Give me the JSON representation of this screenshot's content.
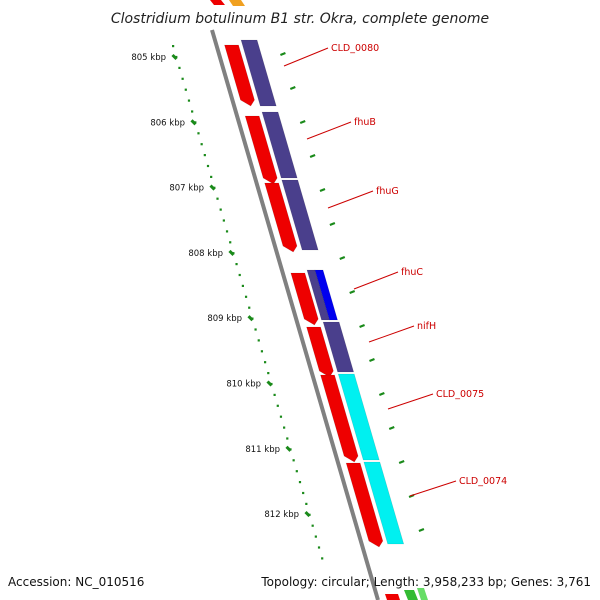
{
  "title": "Clostridium botulinum B1 str. Okra, complete genome",
  "footer": {
    "accession": "Accession: NC_010516",
    "topology": "Topology: circular; Length: 3,958,233 bp; Genes: 3,761"
  },
  "colors": {
    "backbone": "#808080",
    "cds": "#ee0000",
    "gene_track": "#4a3f8c",
    "fhuC": "#0000ee",
    "cyan_genes": "#00f0f0",
    "scale_dots": "#1a8a1a",
    "label_line": "#cc0000",
    "orange_partial": "#f0a020",
    "green_partial": "#33bb33"
  },
  "scale": {
    "unit": "kbp",
    "ticks": [
      {
        "value": 805,
        "label": "805 kbp"
      },
      {
        "value": 806,
        "label": "806 kbp"
      },
      {
        "value": 807,
        "label": "807 kbp"
      },
      {
        "value": 808,
        "label": "808 kbp"
      },
      {
        "value": 809,
        "label": "809 kbp"
      },
      {
        "value": 810,
        "label": "810 kbp"
      },
      {
        "value": 811,
        "label": "811 kbp"
      },
      {
        "value": 812,
        "label": "812 kbp"
      }
    ]
  },
  "genes": [
    {
      "name": "CLD_0080",
      "start": 805.0,
      "end": 805.9,
      "track": "purple"
    },
    {
      "name": "fhuB",
      "start": 805.9,
      "end": 806.9,
      "track": "purple"
    },
    {
      "name": "fhuG",
      "start": 806.9,
      "end": 808.0,
      "track": "purple"
    },
    {
      "name": "fhuC",
      "start": 808.3,
      "end": 809.1,
      "track": "blue"
    },
    {
      "name": "nifH",
      "start": 809.1,
      "end": 809.9,
      "track": "purple"
    },
    {
      "name": "CLD_0075",
      "start": 809.9,
      "end": 811.2,
      "track": "cyan"
    },
    {
      "name": "CLD_0074",
      "start": 811.2,
      "end": 812.4,
      "track": "cyan"
    }
  ]
}
